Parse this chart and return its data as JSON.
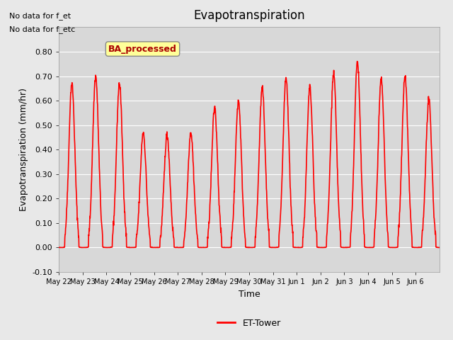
{
  "title": "Evapotranspiration",
  "xlabel": "Time",
  "ylabel": "Evapotranspiration (mm/hr)",
  "ylim": [
    -0.1,
    0.9
  ],
  "yticks": [
    -0.1,
    0.0,
    0.1,
    0.2,
    0.3,
    0.4,
    0.5,
    0.6,
    0.7,
    0.8
  ],
  "xtick_labels": [
    "May 22",
    "May 23",
    "May 24",
    "May 25",
    "May 26",
    "May 27",
    "May 28",
    "May 29",
    "May 30",
    "May 31",
    "Jun 1",
    "Jun 2",
    "Jun 3",
    "Jun 4",
    "Jun 5",
    "Jun 6"
  ],
  "line_color": "#ff0000",
  "line_width": 1.2,
  "background_color": "#e8e8e8",
  "plot_bg_color": "#d8d8d8",
  "annotation_text_1": "No data for f_et",
  "annotation_text_2": "No data for f_etc",
  "legend_label": "ET-Tower",
  "box_label": "BA_processed",
  "box_color": "#ffff99",
  "box_text_color": "#aa0000",
  "num_days": 16,
  "day_peaks": [
    0.67,
    0.7,
    0.67,
    0.47,
    0.46,
    0.47,
    0.57,
    0.6,
    0.65,
    0.69,
    0.65,
    0.71,
    0.76,
    0.69,
    0.7,
    0.6
  ]
}
